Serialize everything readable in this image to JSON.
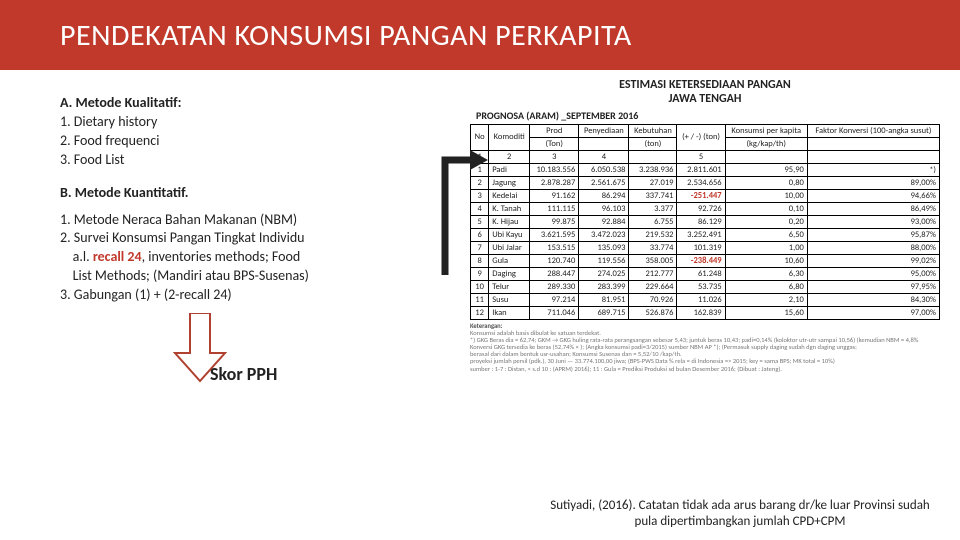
{
  "title": "PENDEKATAN KONSUMSI PANGAN PERKAPITA",
  "left": {
    "a_header": "A.  Metode Kualitatif:",
    "a1": "1. Dietary history",
    "a2": "2. Food frequenci",
    "a3": "3. Food List",
    "b_header": "B. Metode Kuantitatif.",
    "b1": "1. Metode Neraca Bahan Makanan (NBM)",
    "b2a": "2. Survei Konsumsi Pangan Tingkat Individu",
    "b2b_pre": "    a.l. ",
    "b2b_recall": "recall 24",
    "b2b_post": ", inventories methods; Food",
    "b2c": "    List Methods; (Mandiri atau BPS-Susenas)",
    "b3": "3. Gabungan (1)  + (2-recall 24)",
    "skor": "Skor PPH"
  },
  "chart": {
    "title1": "ESTIMASI KETERSEDIAAN PANGAN",
    "title2": "JAWA TENGAH",
    "prognosa": "PROGNOSA (ARAM) _SEPTEMBER 2016",
    "columns": [
      "No",
      "Komoditi",
      "Prod",
      "Penyediaan",
      "Kebutuhan",
      "(+ / -) (ton)",
      "Konsumsi per kapita",
      "Faktor Konversi (100-angka susut)"
    ],
    "units_row": [
      "",
      "",
      "(Ton)",
      "",
      "(ton)",
      "",
      "(kg/kap/th)",
      ""
    ],
    "num_row": [
      "1",
      "2",
      "3",
      "4",
      "",
      "5",
      "",
      ""
    ],
    "rows": [
      {
        "no": "1",
        "kom": "Padi",
        "prod": "10.183.556",
        "peny": "6.050.538",
        "keb": "3.238.936",
        "delta": "2.811.601",
        "kons": "95,90",
        "fk": "*)"
      },
      {
        "no": "2",
        "kom": "Jagung",
        "prod": "2.878.287",
        "peny": "2.561.675",
        "keb": "27.019",
        "delta": "2.534.656",
        "kons": "0,80",
        "fk": "89,00%"
      },
      {
        "no": "3",
        "kom": "Kedelai",
        "prod": "91.162",
        "peny": "86.294",
        "keb": "337.741",
        "delta": "-251.447",
        "neg": true,
        "kons": "10,00",
        "fk": "94,66%"
      },
      {
        "no": "4",
        "kom": "K. Tanah",
        "prod": "111.115",
        "peny": "96.103",
        "keb": "3.377",
        "delta": "92.726",
        "kons": "0,10",
        "fk": "86,49%"
      },
      {
        "no": "5",
        "kom": "K. Hijau",
        "prod": "99.875",
        "peny": "92.884",
        "keb": "6.755",
        "delta": "86.129",
        "kons": "0,20",
        "fk": "93,00%"
      },
      {
        "no": "6",
        "kom": "Ubi Kayu",
        "prod": "3.621.595",
        "peny": "3.472.023",
        "keb": "219.532",
        "delta": "3.252.491",
        "kons": "6,50",
        "fk": "95,87%"
      },
      {
        "no": "7",
        "kom": "Ubi Jalar",
        "prod": "153.515",
        "peny": "135.093",
        "keb": "33.774",
        "delta": "101.319",
        "kons": "1,00",
        "fk": "88,00%"
      },
      {
        "no": "8",
        "kom": "Gula",
        "prod": "120.740",
        "peny": "119.556",
        "keb": "358.005",
        "delta": "-238.449",
        "neg": true,
        "kons": "10,60",
        "fk": "99,02%"
      },
      {
        "no": "9",
        "kom": "Daging",
        "prod": "288.447",
        "peny": "274.025",
        "keb": "212.777",
        "delta": "61.248",
        "kons": "6,30",
        "fk": "95,00%"
      },
      {
        "no": "10",
        "kom": "Telur",
        "prod": "289.330",
        "peny": "283.399",
        "keb": "229.664",
        "delta": "53.735",
        "kons": "6,80",
        "fk": "97,95%"
      },
      {
        "no": "11",
        "kom": "Susu",
        "prod": "97.214",
        "peny": "81.951",
        "keb": "70.926",
        "delta": "11.026",
        "kons": "2,10",
        "fk": "84,30%"
      },
      {
        "no": "12",
        "kom": "Ikan",
        "prod": "711.046",
        "peny": "689.715",
        "keb": "526.876",
        "delta": "162.839",
        "kons": "15,60",
        "fk": "97,00%"
      }
    ],
    "ket_label": "Keterangan:",
    "k1": "Konsumsi adalah basis dibulat ke satuan terdekat.",
    "k2": "*) GKG Beras dia = 62,74; GKM → GKG huling rata-rata perangsangan sebesar 5,43; juntuk beras 10,43; padi=0,14% (koloktor utr-utr sampai 10,56) (kemudian NBM = 4,8%",
    "k3": "Konversi GKG tersedia ke beras (52,74% × ); (Angka konsumsi padi=3/2015) sumber NBM AP     *); (Permasuk supply daging sudah dgn daging unggas;",
    "k4": "berasal dari dalam bentuk usr-usahan; Konsumsi Susenas dan = 5,52/10 /kap/th.",
    "k5": "proyeksi jumlah persil (pdk.), 30 Juni —                33.774.100,00 jiwa; (BPS-PWS Data % rela = di Indonesia => 2015; key = sama BPS; MK total = 10%)",
    "k6": "sumber : 1-7 : Distan, < s.d 10 : (APRM) 2016); 11 : Gula = Prediksi Produksi sd bulan Desember 2016; (Dibuat :     Jateng)."
  },
  "cite": "Sutiyadi, (2016). Catatan tidak ada arus barang dr/ke luar Provinsi sudah pula dipertimbangkan jumlah CPD+CPM"
}
